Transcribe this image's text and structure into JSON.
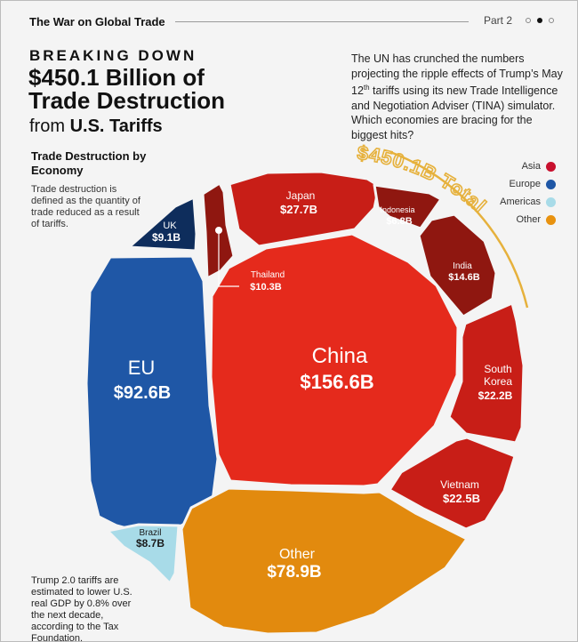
{
  "header": {
    "series_title": "The War on Global Trade",
    "part_label": "Part 2"
  },
  "headline": {
    "eyebrow": "BREAKING DOWN",
    "line1": "$450.1 Billion of",
    "line2": "Trade Destruction",
    "line3_prefix": "from",
    "line3_main": "U.S. Tariffs"
  },
  "intro": {
    "part1": "The UN has crunched the numbers projecting the ripple effects of Trump’s May 12",
    "superscript": "th",
    "part2": " tariffs using its new Trade Intelligence and Negotiation Adviser (TINA) simulator. Which economies are bracing for the biggest hits?"
  },
  "subheading": {
    "title": "Trade Destruction by Economy",
    "description": "Trade destruction is defined as the quantity of trade reduced as a result of tariffs."
  },
  "footnote": "Trump 2.0 tariffs are estimated to lower U.S. real GDP by 0.8% over the next decade, according to the Tax Foundation.",
  "legend": [
    {
      "label": "Asia",
      "color": "#c8102e"
    },
    {
      "label": "Europe",
      "color": "#1f57a6"
    },
    {
      "label": "Americas",
      "color": "#a8dbe8"
    },
    {
      "label": "Other",
      "color": "#e8920f"
    }
  ],
  "colors": {
    "china": "#e52a1c",
    "asia_red": "#c81e17",
    "asia_dark": "#8f1710",
    "europe": "#1f57a6",
    "uk": "#0e2d5c",
    "americas": "#a8dbe8",
    "other": "#e28a0e",
    "total_arc": "#e6b13c"
  },
  "chart_data": {
    "type": "voronoi-treemap",
    "title": "Trade Destruction by Economy",
    "unit": "USD billions",
    "total_label": "$450.1B Total",
    "total": 450.1,
    "cells": [
      {
        "name": "China",
        "value_label": "$156.6B",
        "value": 156.6,
        "region": "Asia"
      },
      {
        "name": "EU",
        "value_label": "$92.6B",
        "value": 92.6,
        "region": "Europe"
      },
      {
        "name": "Other",
        "value_label": "$78.9B",
        "value": 78.9,
        "region": "Other"
      },
      {
        "name": "Japan",
        "value_label": "$27.7B",
        "value": 27.7,
        "region": "Asia"
      },
      {
        "name": "Vietnam",
        "value_label": "$22.5B",
        "value": 22.5,
        "region": "Asia"
      },
      {
        "name": "South Korea",
        "value_label": "$22.2B",
        "value": 22.2,
        "region": "Asia"
      },
      {
        "name": "India",
        "value_label": "$14.6B",
        "value": 14.6,
        "region": "Asia"
      },
      {
        "name": "Thailand",
        "value_label": "$10.3B",
        "value": 10.3,
        "region": "Asia"
      },
      {
        "name": "UK",
        "value_label": "$9.1B",
        "value": 9.1,
        "region": "Europe"
      },
      {
        "name": "Brazil",
        "value_label": "$8.7B",
        "value": 8.7,
        "region": "Americas"
      },
      {
        "name": "Indonesia",
        "value_label": "$6.8B",
        "value": 6.8,
        "region": "Asia"
      }
    ]
  }
}
